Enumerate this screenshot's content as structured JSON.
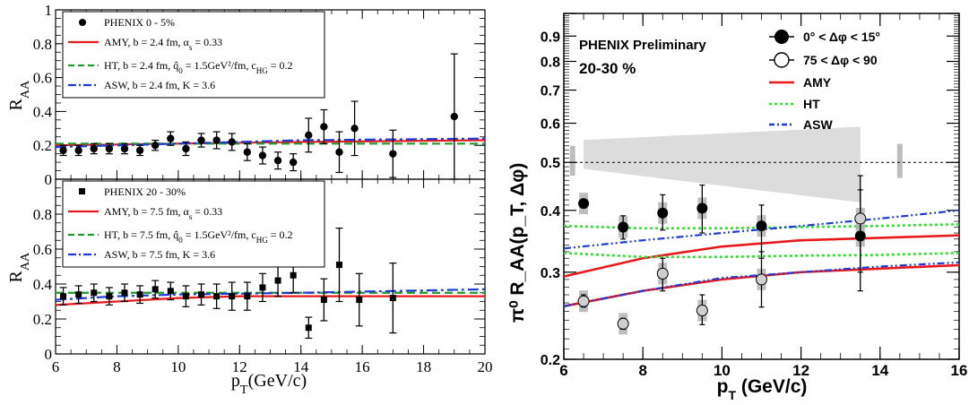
{
  "chart_data": [
    {
      "type": "scatter",
      "panel": "left-top",
      "ylabel": "R_AA",
      "xlim": [
        6,
        20
      ],
      "ylim": [
        0,
        1
      ],
      "yticks": [
        "0",
        "0.2",
        "0.4",
        "0.6",
        "0.8",
        "1"
      ],
      "legend": [
        {
          "text": "PHENIX 0 - 5%",
          "style": "marker-circle"
        },
        {
          "text": "AMY, b = 2.4 fm, α_s = 0.33",
          "style": "red-solid"
        },
        {
          "text": "HT, b = 2.4 fm, q̂_0 = 1.5GeV²/fm, c_HG = 0.2",
          "style": "green-dashed"
        },
        {
          "text": "ASW, b = 2.4 fm, K = 3.6",
          "style": "blue-dashdot"
        }
      ],
      "points": [
        {
          "x": 6.25,
          "y": 0.17,
          "err": 0.03
        },
        {
          "x": 6.75,
          "y": 0.17,
          "err": 0.03
        },
        {
          "x": 7.25,
          "y": 0.18,
          "err": 0.03
        },
        {
          "x": 7.75,
          "y": 0.18,
          "err": 0.03
        },
        {
          "x": 8.25,
          "y": 0.18,
          "err": 0.03
        },
        {
          "x": 8.75,
          "y": 0.17,
          "err": 0.03
        },
        {
          "x": 9.25,
          "y": 0.2,
          "err": 0.03
        },
        {
          "x": 9.75,
          "y": 0.24,
          "err": 0.04
        },
        {
          "x": 10.25,
          "y": 0.18,
          "err": 0.04
        },
        {
          "x": 10.75,
          "y": 0.23,
          "err": 0.04
        },
        {
          "x": 11.25,
          "y": 0.23,
          "err": 0.05
        },
        {
          "x": 11.75,
          "y": 0.22,
          "err": 0.05
        },
        {
          "x": 12.25,
          "y": 0.16,
          "err": 0.05
        },
        {
          "x": 12.75,
          "y": 0.14,
          "err": 0.05
        },
        {
          "x": 13.25,
          "y": 0.11,
          "err": 0.05
        },
        {
          "x": 13.75,
          "y": 0.1,
          "err": 0.05
        },
        {
          "x": 14.25,
          "y": 0.26,
          "err": 0.1
        },
        {
          "x": 14.75,
          "y": 0.31,
          "err": 0.1
        },
        {
          "x": 15.25,
          "y": 0.16,
          "err": 0.12
        },
        {
          "x": 15.75,
          "y": 0.3,
          "err": 0.16
        },
        {
          "x": 17.0,
          "y": 0.15,
          "err": 0.14
        },
        {
          "x": 19.0,
          "y": 0.37,
          "err": 0.37
        }
      ],
      "curves": [
        {
          "name": "AMY",
          "x": [
            6,
            10,
            14,
            20
          ],
          "y": [
            0.2,
            0.21,
            0.22,
            0.23
          ]
        },
        {
          "name": "HT",
          "x": [
            6,
            10,
            14,
            20
          ],
          "y": [
            0.21,
            0.21,
            0.21,
            0.21
          ]
        },
        {
          "name": "ASW",
          "x": [
            6,
            10,
            14,
            20
          ],
          "y": [
            0.19,
            0.21,
            0.23,
            0.24
          ]
        }
      ]
    },
    {
      "type": "scatter",
      "panel": "left-bottom",
      "ylabel": "R_AA",
      "xlabel": "p_T (GeV/c)",
      "xlim": [
        6,
        20
      ],
      "ylim": [
        0,
        1
      ],
      "xticks": [
        "6",
        "8",
        "10",
        "12",
        "14",
        "16",
        "18",
        "20"
      ],
      "yticks": [
        "0",
        "0.2",
        "0.4",
        "0.6",
        "0.8"
      ],
      "legend": [
        {
          "text": "PHENIX 20 - 30%",
          "style": "marker-square"
        },
        {
          "text": "AMY, b = 7.5 fm, α_s = 0.33",
          "style": "red-solid"
        },
        {
          "text": "HT, b = 7.5 fm, q̂_0 = 1.5GeV²/fm, c_HG = 0.2",
          "style": "green-dashed"
        },
        {
          "text": "ASW, b = 7.5 fm, K = 3.6",
          "style": "blue-dashdot"
        }
      ],
      "points": [
        {
          "x": 6.25,
          "y": 0.33,
          "err": 0.05
        },
        {
          "x": 6.75,
          "y": 0.34,
          "err": 0.05
        },
        {
          "x": 7.25,
          "y": 0.35,
          "err": 0.05
        },
        {
          "x": 7.75,
          "y": 0.33,
          "err": 0.05
        },
        {
          "x": 8.25,
          "y": 0.35,
          "err": 0.05
        },
        {
          "x": 8.75,
          "y": 0.34,
          "err": 0.05
        },
        {
          "x": 9.25,
          "y": 0.37,
          "err": 0.05
        },
        {
          "x": 9.75,
          "y": 0.36,
          "err": 0.05
        },
        {
          "x": 10.25,
          "y": 0.33,
          "err": 0.06
        },
        {
          "x": 10.75,
          "y": 0.34,
          "err": 0.06
        },
        {
          "x": 11.25,
          "y": 0.33,
          "err": 0.07
        },
        {
          "x": 11.75,
          "y": 0.33,
          "err": 0.08
        },
        {
          "x": 12.25,
          "y": 0.33,
          "err": 0.08
        },
        {
          "x": 12.75,
          "y": 0.38,
          "err": 0.08
        },
        {
          "x": 13.25,
          "y": 0.42,
          "err": 0.09
        },
        {
          "x": 13.75,
          "y": 0.45,
          "err": 0.1
        },
        {
          "x": 14.25,
          "y": 0.15,
          "err": 0.06
        },
        {
          "x": 14.75,
          "y": 0.31,
          "err": 0.12
        },
        {
          "x": 15.25,
          "y": 0.51,
          "err": 0.21
        },
        {
          "x": 15.9,
          "y": 0.31,
          "err": 0.15
        },
        {
          "x": 17.0,
          "y": 0.32,
          "err": 0.2
        }
      ],
      "curves": [
        {
          "name": "AMY",
          "x": [
            6,
            8,
            10,
            12,
            14,
            20
          ],
          "y": [
            0.28,
            0.3,
            0.32,
            0.33,
            0.33,
            0.33
          ]
        },
        {
          "name": "HT",
          "x": [
            6,
            10,
            14,
            20
          ],
          "y": [
            0.35,
            0.35,
            0.35,
            0.35
          ]
        },
        {
          "name": "ASW",
          "x": [
            6,
            8,
            10,
            14,
            20
          ],
          "y": [
            0.31,
            0.33,
            0.34,
            0.35,
            0.37
          ]
        }
      ]
    },
    {
      "type": "scatter",
      "panel": "right",
      "title": "PHENIX Preliminary",
      "subtitle": "20-30 %",
      "ylabel": "π⁰  R_AA(p_T, Δφ)",
      "xlabel": "p_T (GeV/c)",
      "xlim": [
        6,
        16
      ],
      "ylim": [
        0.2,
        1.0
      ],
      "yscale": "log",
      "xticks": [
        "6",
        "8",
        "10",
        "12",
        "14",
        "16"
      ],
      "yticks": [
        "0.2",
        "0.3",
        "0.4",
        "0.5",
        "0.6",
        "0.7",
        "0.8",
        "0.9"
      ],
      "reference_line": 0.5,
      "legend": [
        {
          "text": "0° < Δφ < 15°",
          "style": "marker-filled-circle"
        },
        {
          "text": "75 < Δφ < 90",
          "style": "marker-open-circle"
        },
        {
          "text": "AMY",
          "style": "red-solid"
        },
        {
          "text": "HT",
          "style": "green-dotted"
        },
        {
          "text": "ASW",
          "style": "blue-dashdotdot"
        }
      ],
      "series": [
        {
          "name": "0° < Δφ < 15°",
          "points": [
            {
              "x": 6.5,
              "y": 0.413,
              "lo": 0.405,
              "hi": 0.42
            },
            {
              "x": 7.5,
              "y": 0.37,
              "lo": 0.35,
              "hi": 0.39
            },
            {
              "x": 8.5,
              "y": 0.395,
              "lo": 0.365,
              "hi": 0.43
            },
            {
              "x": 9.5,
              "y": 0.404,
              "lo": 0.36,
              "hi": 0.45
            },
            {
              "x": 11.0,
              "y": 0.372,
              "lo": 0.32,
              "hi": 0.41
            },
            {
              "x": 13.5,
              "y": 0.355,
              "lo": 0.275,
              "hi": 0.47
            }
          ]
        },
        {
          "name": "75 < Δφ < 90",
          "points": [
            {
              "x": 6.5,
              "y": 0.262,
              "lo": 0.255,
              "hi": 0.27
            },
            {
              "x": 7.5,
              "y": 0.236,
              "lo": 0.23,
              "hi": 0.242
            },
            {
              "x": 8.5,
              "y": 0.298,
              "lo": 0.275,
              "hi": 0.32
            },
            {
              "x": 9.5,
              "y": 0.251,
              "lo": 0.235,
              "hi": 0.27
            },
            {
              "x": 11.0,
              "y": 0.29,
              "lo": 0.255,
              "hi": 0.33
            },
            {
              "x": 13.5,
              "y": 0.385,
              "lo": 0.3,
              "hi": 0.44
            }
          ]
        }
      ],
      "curves": [
        {
          "name": "AMY",
          "x": [
            6,
            8,
            10,
            12,
            14,
            16
          ],
          "y": [
            0.294,
            0.32,
            0.338,
            0.348,
            0.352,
            0.356
          ]
        },
        {
          "name": "AMY",
          "x": [
            6,
            8,
            10,
            12,
            14,
            16
          ],
          "y": [
            0.256,
            0.275,
            0.29,
            0.3,
            0.305,
            0.31
          ]
        },
        {
          "name": "HT",
          "x": [
            6,
            8,
            10,
            12,
            14,
            16
          ],
          "y": [
            0.372,
            0.368,
            0.368,
            0.37,
            0.372,
            0.375
          ]
        },
        {
          "name": "HT",
          "x": [
            6,
            8,
            10,
            12,
            14,
            16
          ],
          "y": [
            0.328,
            0.322,
            0.322,
            0.324,
            0.325,
            0.328
          ]
        },
        {
          "name": "ASW",
          "x": [
            6,
            8,
            10,
            12,
            14,
            16
          ],
          "y": [
            0.335,
            0.348,
            0.36,
            0.372,
            0.385,
            0.4
          ]
        },
        {
          "name": "ASW",
          "x": [
            6,
            8,
            10,
            12,
            14,
            16
          ],
          "y": [
            0.256,
            0.275,
            0.292,
            0.3,
            0.308,
            0.314
          ]
        }
      ]
    }
  ]
}
